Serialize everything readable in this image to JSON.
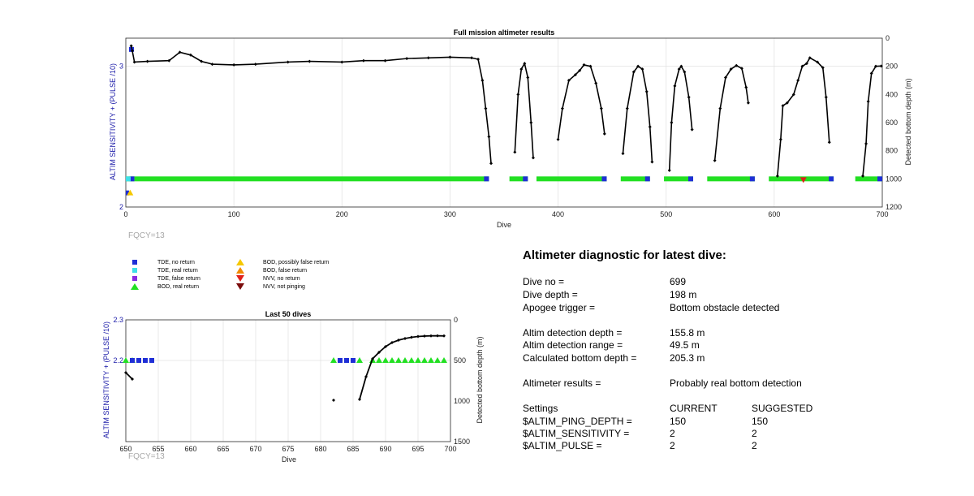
{
  "colors": {
    "tde_no_return": "#1f2fd6",
    "tde_real_return": "#3ee0e8",
    "tde_false_return": "#8a2be2",
    "bod_real_return": "#22e022",
    "bod_possibly_false": "#f5c800",
    "bod_false_return": "#f08a00",
    "nvv_no_return": "#e0201a",
    "nvv_not_pinging": "#7a0c0c",
    "left_axis": "#1a1aa8",
    "depth_line": "#000000"
  },
  "main_chart": {
    "title": "Full mission altimeter results",
    "xlabel": "Dive",
    "ylabel_left": "ALTIM SENSITIVITY + (PULSE /10)",
    "ylabel_right": "Detected bottom depth (m)",
    "fqcy_label": "FQCY=13"
  },
  "zoom_chart": {
    "title": "Last 50 dives",
    "xlabel": "Dive",
    "ylabel_left": "ALTIM SENSITIVITY + (PULSE /10)",
    "ylabel_right": "Detected bottom depth (m)",
    "fqcy_label": "FQCY=13"
  },
  "legend": [
    {
      "key": "tde_no_return",
      "label": "TDE, no return",
      "shape": "square"
    },
    {
      "key": "tde_real_return",
      "label": "TDE, real return",
      "shape": "square"
    },
    {
      "key": "tde_false_return",
      "label": "TDE, false return",
      "shape": "square"
    },
    {
      "key": "bod_real_return",
      "label": "BOD, real return",
      "shape": "triangle-up"
    },
    {
      "key": "bod_possibly_false",
      "label": "BOD, possibly false return",
      "shape": "triangle-up"
    },
    {
      "key": "bod_false_return",
      "label": "BOD, false return",
      "shape": "triangle-up"
    },
    {
      "key": "nvv_no_return",
      "label": "NVV, no return",
      "shape": "triangle-down"
    },
    {
      "key": "nvv_not_pinging",
      "label": "NVV, not pinging",
      "shape": "triangle-down"
    }
  ],
  "diagnostic": {
    "heading": "Altimeter diagnostic for latest dive:",
    "dive_no_label": "Dive no =",
    "dive_no": "699",
    "dive_depth_label": "Dive depth =",
    "dive_depth": "198 m",
    "apogee_label": "Apogee trigger =",
    "apogee": "Bottom obstacle detected",
    "det_depth_label": "Altim detection depth =",
    "det_depth": "155.8 m",
    "det_range_label": "Altim detection range =",
    "det_range": "49.5 m",
    "calc_depth_label": "Calculated bottom depth =",
    "calc_depth": "205.3 m",
    "results_label": "Altimeter results =",
    "results": "Probably real bottom detection",
    "settings_label": "Settings",
    "current_label": "CURRENT",
    "suggested_label": "SUGGESTED",
    "ping_depth_label": "$ALTIM_PING_DEPTH =",
    "ping_depth_current": "150",
    "ping_depth_suggested": "150",
    "sensitivity_label": "$ALTIM_SENSITIVITY =",
    "sensitivity_current": "2",
    "sensitivity_suggested": "2",
    "pulse_label": "$ALTIM_PULSE =",
    "pulse_current": "2",
    "pulse_suggested": "2"
  },
  "chart_data": [
    {
      "type": "scatter",
      "title": "Full mission altimeter results",
      "xlabel": "Dive",
      "ylabel": "ALTIM SENSITIVITY + (PULSE /10)",
      "ylabel_right": "Detected bottom depth (m)",
      "xlim": [
        0,
        700
      ],
      "ylim": [
        2,
        3.2
      ],
      "ylim_right": [
        1200,
        0
      ],
      "x_ticks": [
        0,
        100,
        200,
        300,
        400,
        500,
        600,
        700
      ],
      "y_ticks_left": [
        2,
        3
      ],
      "y_ticks_right": [
        0,
        200,
        400,
        600,
        800,
        1000,
        1200
      ],
      "grid": true,
      "depth_segments": [
        [
          [
            5,
            55
          ],
          [
            6,
            90
          ],
          [
            8,
            170
          ],
          [
            20,
            165
          ],
          [
            40,
            160
          ],
          [
            50,
            100
          ],
          [
            60,
            120
          ],
          [
            70,
            165
          ],
          [
            80,
            185
          ],
          [
            100,
            190
          ],
          [
            120,
            185
          ],
          [
            150,
            170
          ],
          [
            170,
            165
          ],
          [
            200,
            170
          ],
          [
            220,
            160
          ],
          [
            240,
            160
          ],
          [
            260,
            145
          ],
          [
            280,
            140
          ],
          [
            300,
            135
          ],
          [
            320,
            140
          ],
          [
            326,
            150
          ],
          [
            330,
            300
          ],
          [
            333,
            500
          ],
          [
            336,
            700
          ],
          [
            338,
            890
          ]
        ],
        [
          [
            360,
            810
          ],
          [
            363,
            400
          ],
          [
            366,
            220
          ],
          [
            369,
            180
          ],
          [
            372,
            280
          ],
          [
            375,
            600
          ],
          [
            377,
            850
          ]
        ],
        [
          [
            400,
            720
          ],
          [
            404,
            500
          ],
          [
            410,
            300
          ],
          [
            416,
            260
          ],
          [
            420,
            230
          ],
          [
            424,
            190
          ],
          [
            430,
            200
          ],
          [
            435,
            320
          ],
          [
            440,
            500
          ],
          [
            443,
            680
          ]
        ],
        [
          [
            460,
            820
          ],
          [
            464,
            500
          ],
          [
            470,
            240
          ],
          [
            474,
            200
          ],
          [
            478,
            220
          ],
          [
            482,
            380
          ],
          [
            485,
            630
          ],
          [
            487,
            880
          ]
        ],
        [
          [
            503,
            940
          ],
          [
            505,
            600
          ],
          [
            508,
            340
          ],
          [
            512,
            220
          ],
          [
            514,
            200
          ],
          [
            517,
            240
          ],
          [
            521,
            420
          ],
          [
            524,
            650
          ]
        ],
        [
          [
            545,
            870
          ],
          [
            550,
            500
          ],
          [
            555,
            280
          ],
          [
            560,
            220
          ],
          [
            565,
            195
          ],
          [
            570,
            215
          ],
          [
            574,
            350
          ],
          [
            576,
            460
          ]
        ],
        [
          [
            603,
            980
          ],
          [
            606,
            720
          ],
          [
            608,
            480
          ],
          [
            612,
            460
          ],
          [
            618,
            400
          ],
          [
            622,
            300
          ],
          [
            626,
            200
          ],
          [
            630,
            180
          ],
          [
            633,
            140
          ],
          [
            640,
            170
          ],
          [
            645,
            210
          ],
          [
            648,
            420
          ],
          [
            651,
            740
          ]
        ],
        [
          [
            682,
            980
          ],
          [
            685,
            750
          ],
          [
            687,
            450
          ],
          [
            690,
            250
          ],
          [
            694,
            200
          ],
          [
            699,
            198
          ]
        ]
      ],
      "tde_segments": [
        [
          0,
          8
        ],
        [
          8,
          336
        ],
        [
          355,
          372
        ],
        [
          380,
          445
        ],
        [
          458,
          485
        ],
        [
          498,
          525
        ],
        [
          538,
          582
        ],
        [
          595,
          655
        ],
        [
          675,
          700
        ]
      ]
    },
    {
      "type": "scatter",
      "title": "Last 50 dives",
      "xlabel": "Dive",
      "ylabel": "ALTIM SENSITIVITY + (PULSE /10)",
      "ylabel_right": "Detected bottom depth (m)",
      "xlim": [
        650,
        700
      ],
      "ylim": [
        2,
        2.3
      ],
      "ylim_right": [
        1500,
        0
      ],
      "x_ticks": [
        650,
        655,
        660,
        665,
        670,
        675,
        680,
        685,
        690,
        695,
        700
      ],
      "y_ticks_left": [
        2.2,
        2.3
      ],
      "y_ticks_right": [
        0,
        500,
        1000,
        1500
      ],
      "grid": true,
      "tde_no_return_x": [
        651,
        652,
        653,
        654,
        683,
        684,
        685
      ],
      "bod_real_return_x": [
        650,
        651,
        682,
        686,
        688,
        689,
        690,
        691,
        692,
        693,
        694,
        695,
        696,
        697,
        698,
        699
      ],
      "depth_segments": [
        [
          [
            650,
            650
          ],
          [
            651,
            730
          ]
        ],
        [
          [
            682,
            990
          ]
        ],
        [
          [
            686,
            980
          ],
          [
            687,
            700
          ],
          [
            688,
            480
          ],
          [
            689,
            400
          ],
          [
            690,
            330
          ],
          [
            691,
            280
          ],
          [
            692,
            250
          ],
          [
            693,
            230
          ],
          [
            694,
            215
          ],
          [
            695,
            205
          ],
          [
            696,
            200
          ],
          [
            697,
            197
          ],
          [
            698,
            196
          ],
          [
            699,
            198
          ]
        ]
      ]
    }
  ]
}
